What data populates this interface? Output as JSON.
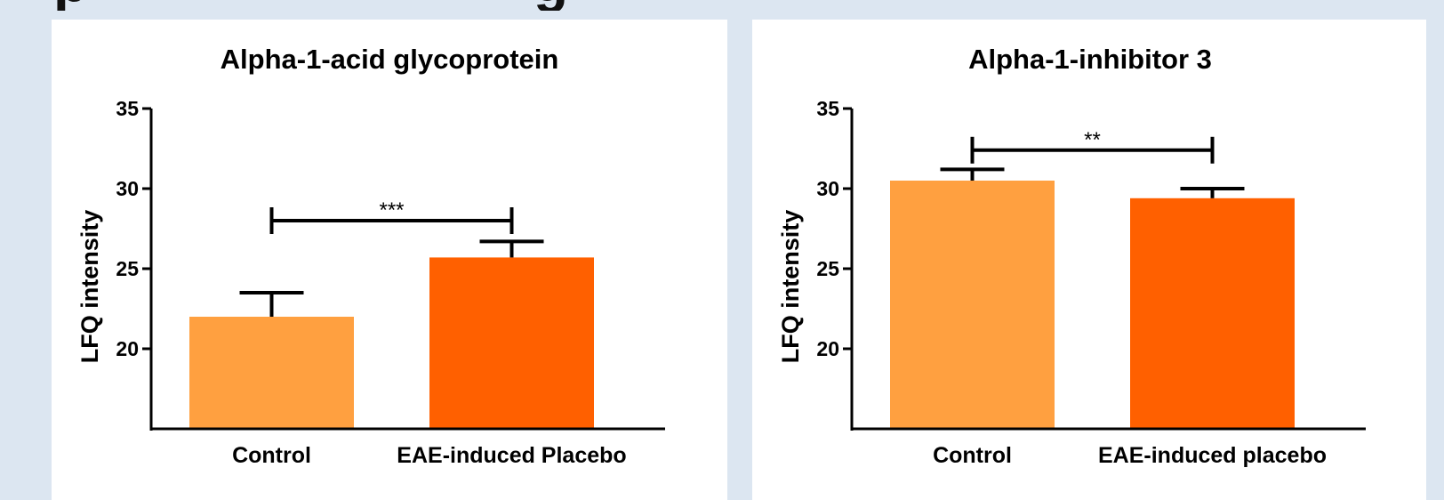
{
  "chart_data": [
    {
      "type": "bar",
      "title": "Alpha-1-acid glycoprotein",
      "ylabel": "LFQ intensity",
      "xlabel": "",
      "ylim": [
        15,
        35
      ],
      "yticks": [
        20,
        25,
        30,
        35
      ],
      "categories": [
        "Control",
        "EAE-induced Placebo"
      ],
      "values": [
        22.0,
        25.7
      ],
      "errors": [
        1.5,
        1.0
      ],
      "colors": [
        "#ffa040",
        "#ff6000"
      ],
      "significance": {
        "from": 0,
        "to": 1,
        "y": 28.0,
        "label": "***"
      }
    },
    {
      "type": "bar",
      "title": "Alpha-1-inhibitor 3",
      "ylabel": "LFQ intensity",
      "xlabel": "",
      "ylim": [
        15,
        35
      ],
      "yticks": [
        20,
        25,
        30,
        35
      ],
      "categories": [
        "Control",
        "EAE-induced placebo"
      ],
      "values": [
        30.5,
        29.4
      ],
      "errors": [
        0.7,
        0.6
      ],
      "colors": [
        "#ffa040",
        "#ff6000"
      ],
      "significance": {
        "from": 0,
        "to": 1,
        "y": 32.4,
        "label": "**"
      }
    }
  ]
}
